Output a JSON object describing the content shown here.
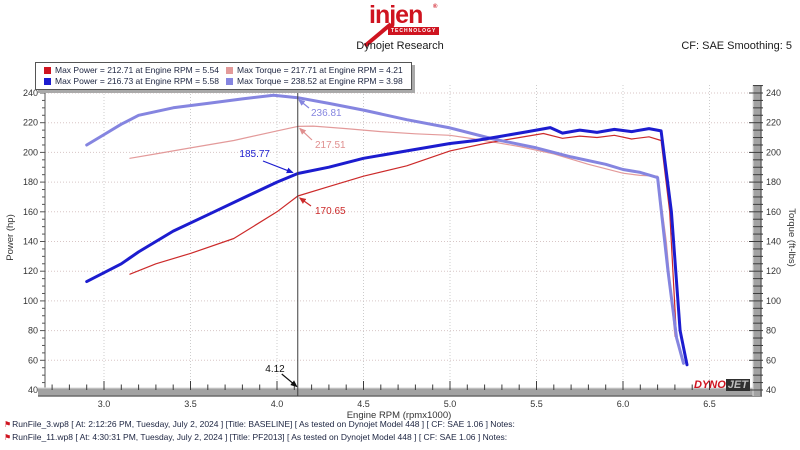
{
  "header": {
    "logo_text": "injen",
    "logo_reg": "®",
    "logo_sub": "TECHNOLOGY",
    "title": "Dynojet Research",
    "cf_label": "CF: SAE Smoothing: 5"
  },
  "legend": {
    "items": [
      {
        "color": "#cf1420",
        "label": "Max Power = 212.71 at Engine RPM = 5.54"
      },
      {
        "color": "#e39a9a",
        "label": "Max Torque = 217.71 at Engine RPM = 4.21"
      },
      {
        "color": "#1c1ccf",
        "label": "Max Power = 216.73 at Engine RPM = 5.58"
      },
      {
        "color": "#8585e0",
        "label": "Max Torque = 238.52 at Engine RPM = 3.98"
      }
    ]
  },
  "chart_data": {
    "type": "line",
    "xlabel": "Engine RPM (rpmx1000)",
    "ylabel_left": "Power (hp)",
    "ylabel_right": "Torque (ft-lbs)",
    "xlim": [
      2.6,
      6.75
    ],
    "ylim": [
      40,
      245
    ],
    "grid": true,
    "xticks": [
      "3.0",
      "3.5",
      "4.0",
      "4.5",
      "5.0",
      "5.5",
      "6.0",
      "6.5"
    ],
    "yticks": [
      "40",
      "60",
      "80",
      "100",
      "120",
      "140",
      "160",
      "180",
      "200",
      "220",
      "240"
    ],
    "series": [
      {
        "name": "baseline-torque",
        "unit": "ft-lbs",
        "color": "#e39a9a",
        "width": 1.2,
        "x": [
          3.15,
          3.3,
          3.5,
          3.75,
          4.0,
          4.12,
          4.21,
          4.4,
          4.6,
          4.8,
          5.0,
          5.2,
          5.4,
          5.6,
          5.8,
          6.0,
          6.1,
          6.2,
          6.25,
          6.3
        ],
        "y": [
          196,
          199,
          203,
          208,
          214.5,
          217.51,
          217.71,
          216,
          214,
          212.5,
          211.5,
          208,
          204,
          199,
          192,
          186,
          184.5,
          184,
          140,
          76
        ]
      },
      {
        "name": "baseline-power",
        "unit": "hp",
        "color": "#cc2a2a",
        "width": 1.2,
        "x": [
          3.15,
          3.3,
          3.5,
          3.75,
          4.0,
          4.12,
          4.3,
          4.5,
          4.75,
          5.0,
          5.2,
          5.35,
          5.54,
          5.65,
          5.75,
          5.85,
          5.95,
          6.05,
          6.15,
          6.22,
          6.27,
          6.31
        ],
        "y": [
          118,
          125,
          132,
          142,
          160,
          170.65,
          177,
          184,
          191,
          201,
          206,
          209,
          212.71,
          209.5,
          211,
          210,
          211.5,
          209,
          210.5,
          208,
          160,
          74
        ]
      },
      {
        "name": "pf2013-torque",
        "unit": "ft-lbs",
        "color": "#8585e0",
        "width": 3,
        "x": [
          2.9,
          3.0,
          3.1,
          3.2,
          3.4,
          3.6,
          3.8,
          3.98,
          4.12,
          4.3,
          4.5,
          4.75,
          5.0,
          5.25,
          5.5,
          5.7,
          5.9,
          6.0,
          6.1,
          6.2,
          6.26,
          6.31,
          6.35
        ],
        "y": [
          205,
          212,
          219,
          225,
          230,
          233,
          236,
          238.52,
          236.81,
          233,
          228.5,
          222,
          216.5,
          209,
          203,
          197,
          192,
          188.5,
          186.5,
          183,
          120,
          75,
          58
        ]
      },
      {
        "name": "pf2013-power",
        "unit": "hp",
        "color": "#1c1ccf",
        "width": 3,
        "x": [
          2.9,
          3.0,
          3.1,
          3.2,
          3.4,
          3.6,
          3.8,
          4.0,
          4.12,
          4.3,
          4.5,
          4.75,
          5.0,
          5.15,
          5.3,
          5.45,
          5.58,
          5.65,
          5.75,
          5.85,
          5.95,
          6.05,
          6.15,
          6.22,
          6.28,
          6.33,
          6.37
        ],
        "y": [
          113,
          119,
          125,
          133,
          147,
          158,
          169,
          180,
          185.77,
          190,
          196,
          201,
          206,
          208,
          211,
          214,
          216.73,
          213,
          215,
          213.5,
          215.5,
          214,
          216,
          214.5,
          160,
          80,
          57
        ]
      }
    ],
    "cursor": {
      "rpm": 4.12,
      "rpm_label": "4.12",
      "readouts": [
        {
          "label": "236.81",
          "value": 236.81,
          "color": "#8585e0"
        },
        {
          "label": "217.51",
          "value": 217.51,
          "color": "#e08f8f"
        },
        {
          "label": "185.77",
          "value": 185.77,
          "color": "#1c1ccf"
        },
        {
          "label": "170.65",
          "value": 170.65,
          "color": "#cc2a2a"
        }
      ]
    }
  },
  "branding": {
    "dyno": "DYNO",
    "jet": "JET"
  },
  "footer": {
    "runs": [
      {
        "flag": "⚑",
        "text": "RunFile_3.wp8 [ At: 2:12:26 PM, Tuesday, July 2, 2024 ] [Title: BASELINE]  [ As tested on Dynojet Model 448 ] [ CF: SAE 1.06 ] Notes:"
      },
      {
        "flag": "⚑",
        "text": "RunFile_11.wp8 [ At: 4:30:31 PM, Tuesday, July 2, 2024 ] [Title: PF2013]  [ As tested on Dynojet Model 448 ] [ CF: SAE 1.06 ] Notes:"
      }
    ]
  }
}
